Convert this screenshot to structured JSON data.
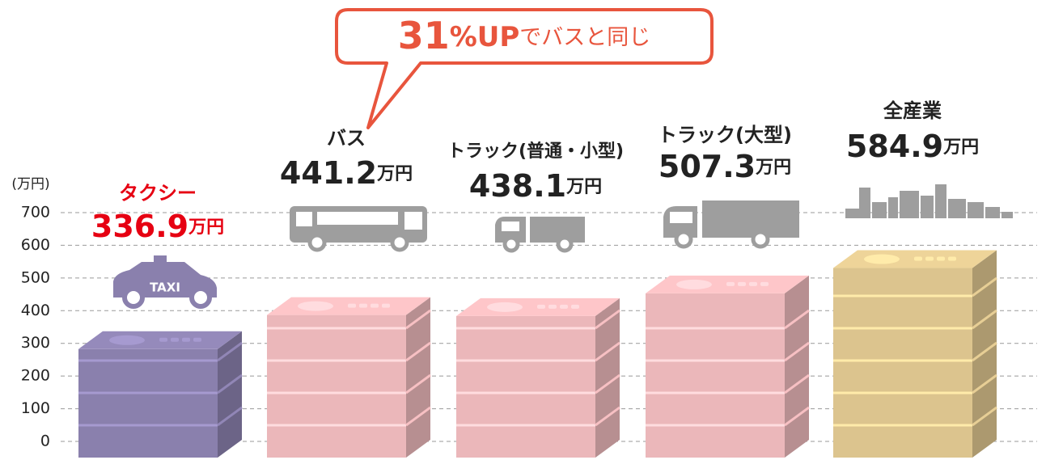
{
  "chart_data": {
    "type": "bar",
    "annotation": "31%UPでバスと同じ",
    "y_label": "(万円)",
    "categories": [
      "タクシー",
      "バス",
      "トラック(普通・小型)",
      "トラック(大型)",
      "全産業"
    ],
    "values": [
      336.9,
      441.2,
      438.1,
      507.3,
      584.9
    ],
    "value_labels": [
      "336.9万円",
      "441.2万円",
      "438.1万円",
      "507.3万円",
      "584.9万円"
    ],
    "colors": [
      "#8a80ad",
      "#ebb7ba",
      "#ebb7ba",
      "#ebb7ba",
      "#dcc48e"
    ],
    "label_colors": [
      "#e60012",
      "#222222",
      "#222222",
      "#222222",
      "#222222"
    ],
    "ylim": [
      0,
      700
    ],
    "yticks": [
      0,
      100,
      200,
      300,
      400,
      500,
      600,
      700
    ],
    "grid": true
  }
}
